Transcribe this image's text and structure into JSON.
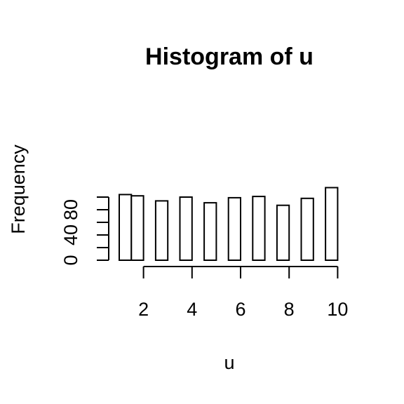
{
  "chart_data": {
    "type": "bar",
    "title": "Histogram of u",
    "xlabel": "u",
    "ylabel": "Frequency",
    "x_ticks": [
      "2",
      "4",
      "6",
      "8",
      "10"
    ],
    "y_ticks": [
      "0",
      "40",
      "80"
    ],
    "bins": [
      {
        "start": 1.0,
        "end": 1.5,
        "value": 104
      },
      {
        "start": 1.5,
        "end": 2.0,
        "value": 102
      },
      {
        "start": 2.5,
        "end": 3.0,
        "value": 94
      },
      {
        "start": 3.5,
        "end": 4.0,
        "value": 100
      },
      {
        "start": 4.5,
        "end": 5.0,
        "value": 91
      },
      {
        "start": 5.5,
        "end": 6.0,
        "value": 99
      },
      {
        "start": 6.5,
        "end": 7.0,
        "value": 101
      },
      {
        "start": 7.5,
        "end": 8.0,
        "value": 87
      },
      {
        "start": 8.5,
        "end": 9.0,
        "value": 98
      },
      {
        "start": 9.5,
        "end": 10.0,
        "value": 115
      }
    ],
    "xlim": [
      1,
      10
    ],
    "ylim": [
      0,
      115
    ],
    "colors": {
      "bar_fill": "#ffffff",
      "bar_stroke": "#000000",
      "axis": "#000000",
      "background": "#ffffff"
    }
  }
}
